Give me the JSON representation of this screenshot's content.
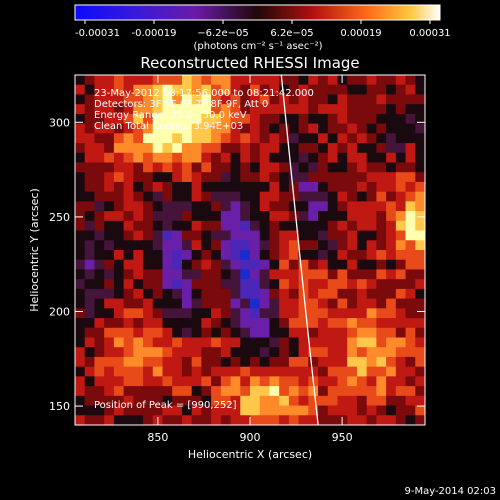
{
  "chart_data": {
    "type": "heatmap",
    "title": "Reconstructed RHESSI Image",
    "xlabel": "Heliocentric X (arcsec)",
    "ylabel": "Heliocentric Y (arcsec)",
    "x_range": [
      805,
      995
    ],
    "y_range": [
      140,
      325
    ],
    "x_ticks": [
      "850",
      "900",
      "950"
    ],
    "y_ticks": [
      "150",
      "200",
      "250",
      "300"
    ],
    "colorbar": {
      "tick_labels": [
        "-0.00031",
        "-0.00019",
        "−6.2e−05",
        "6.2e−05",
        "0.00019",
        "0.00031"
      ],
      "range": [
        -0.00031,
        0.00031
      ],
      "unit_label": "(photons cm⁻² s⁻¹ asec⁻²)",
      "colormap": "blue-purple-red-orange-yellow-white"
    },
    "annotations": {
      "time_range": "23-May-2012 08:17:56.000 to 08:21:42.000",
      "detectors": "Detectors: 3F 5F 6F 7F 8F 9F, Att 0",
      "energy": "Energy Range: 25.0 - 50.0 keV",
      "clean": "Clean     Total Counts: 3.94E+03",
      "peak": "Position of Peak = [990,252]"
    },
    "limb_curve": [
      [
        917,
        325
      ],
      [
        930,
        200
      ],
      [
        937,
        140
      ]
    ],
    "color_levels": [
      "#1a2bd0",
      "#4b27b8",
      "#6a1fa8",
      "#44143a",
      "#1a0a10",
      "#7a0a0c",
      "#c01812",
      "#e84a1a",
      "#ff8a2a",
      "#ffc84a",
      "#ffffb0"
    ]
  },
  "footer": {
    "timestamp": "9-May-2014 02:03"
  }
}
